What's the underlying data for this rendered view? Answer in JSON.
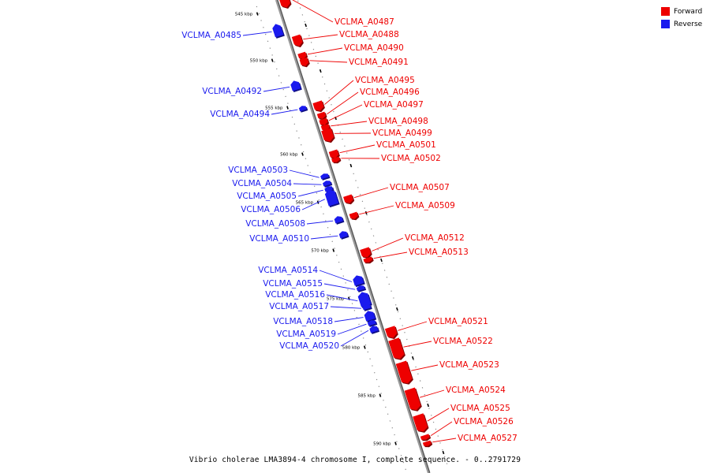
{
  "caption": "Vibrio cholerae LMA3894-4 chromosome I, complete sequence. - 0..2791729",
  "legend": {
    "forward_label": "Forward",
    "reverse_label": "Reverse",
    "forward_color": "#ee0000",
    "reverse_color": "#1a1aee"
  },
  "chart_data": {
    "type": "genome-map",
    "scale_labels": [
      "545 kbp",
      "550 kbp",
      "555 kbp",
      "560 kbp",
      "565 kbp",
      "570 kbp",
      "575 kbp",
      "580 kbp",
      "585 kbp",
      "590 kbp"
    ],
    "genes": [
      {
        "name": "VCLMA_A0485",
        "strand": "reverse"
      },
      {
        "name": "VCLMA_A0487",
        "strand": "forward"
      },
      {
        "name": "VCLMA_A0488",
        "strand": "forward"
      },
      {
        "name": "VCLMA_A0490",
        "strand": "forward"
      },
      {
        "name": "VCLMA_A0491",
        "strand": "forward"
      },
      {
        "name": "VCLMA_A0492",
        "strand": "reverse"
      },
      {
        "name": "VCLMA_A0494",
        "strand": "reverse"
      },
      {
        "name": "VCLMA_A0495",
        "strand": "forward"
      },
      {
        "name": "VCLMA_A0496",
        "strand": "forward"
      },
      {
        "name": "VCLMA_A0497",
        "strand": "forward"
      },
      {
        "name": "VCLMA_A0498",
        "strand": "forward"
      },
      {
        "name": "VCLMA_A0499",
        "strand": "forward"
      },
      {
        "name": "VCLMA_A0501",
        "strand": "forward"
      },
      {
        "name": "VCLMA_A0502",
        "strand": "forward"
      },
      {
        "name": "VCLMA_A0503",
        "strand": "reverse"
      },
      {
        "name": "VCLMA_A0504",
        "strand": "reverse"
      },
      {
        "name": "VCLMA_A0505",
        "strand": "reverse"
      },
      {
        "name": "VCLMA_A0506",
        "strand": "reverse"
      },
      {
        "name": "VCLMA_A0507",
        "strand": "forward"
      },
      {
        "name": "VCLMA_A0508",
        "strand": "reverse"
      },
      {
        "name": "VCLMA_A0509",
        "strand": "forward"
      },
      {
        "name": "VCLMA_A0510",
        "strand": "reverse"
      },
      {
        "name": "VCLMA_A0512",
        "strand": "forward"
      },
      {
        "name": "VCLMA_A0513",
        "strand": "forward"
      },
      {
        "name": "VCLMA_A0514",
        "strand": "reverse"
      },
      {
        "name": "VCLMA_A0515",
        "strand": "reverse"
      },
      {
        "name": "VCLMA_A0516",
        "strand": "reverse"
      },
      {
        "name": "VCLMA_A0517",
        "strand": "reverse"
      },
      {
        "name": "VCLMA_A0518",
        "strand": "reverse"
      },
      {
        "name": "VCLMA_A0519",
        "strand": "reverse"
      },
      {
        "name": "VCLMA_A0520",
        "strand": "reverse"
      },
      {
        "name": "VCLMA_A0521",
        "strand": "forward"
      },
      {
        "name": "VCLMA_A0522",
        "strand": "forward"
      },
      {
        "name": "VCLMA_A0523",
        "strand": "forward"
      },
      {
        "name": "VCLMA_A0524",
        "strand": "forward"
      },
      {
        "name": "VCLMA_A0525",
        "strand": "forward"
      },
      {
        "name": "VCLMA_A0526",
        "strand": "forward"
      },
      {
        "name": "VCLMA_A0527",
        "strand": "forward"
      }
    ]
  }
}
